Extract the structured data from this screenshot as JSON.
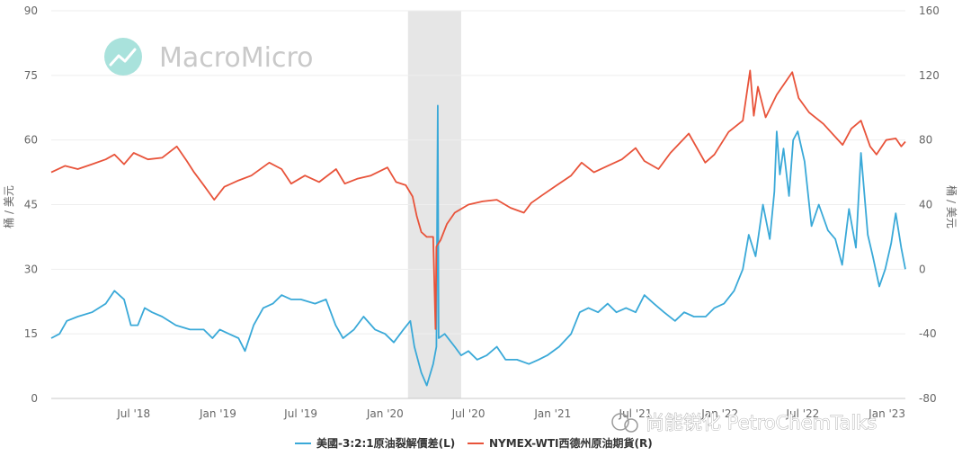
{
  "watermark": {
    "brand": "MacroMicro"
  },
  "credit": {
    "text": "尚能锐化 PetroChemTalks"
  },
  "chart_data": {
    "type": "line",
    "xlabel": "",
    "x_range": [
      "2018-01-02",
      "2023-02-10"
    ],
    "x_ticks": [
      {
        "label": "Jul '18",
        "date": "2018-07-01"
      },
      {
        "label": "Jan '19",
        "date": "2019-01-01"
      },
      {
        "label": "Jul '19",
        "date": "2019-07-01"
      },
      {
        "label": "Jan '20",
        "date": "2020-01-01"
      },
      {
        "label": "Jul '20",
        "date": "2020-07-01"
      },
      {
        "label": "Jan '21",
        "date": "2021-01-01"
      },
      {
        "label": "Jul '21",
        "date": "2021-07-01"
      },
      {
        "label": "Jan '22",
        "date": "2022-01-01"
      },
      {
        "label": "Jul '22",
        "date": "2022-07-01"
      },
      {
        "label": "Jan '23",
        "date": "2023-01-01"
      }
    ],
    "y_left": {
      "label": "桶 / 美元",
      "min": 0,
      "max": 90,
      "ticks": [
        0,
        15,
        30,
        45,
        60,
        75,
        90
      ]
    },
    "y_right": {
      "label": "桶 / 美元",
      "min": -80,
      "max": 160,
      "ticks": [
        -80,
        -40,
        0,
        40,
        80,
        120,
        160
      ]
    },
    "shaded_region": {
      "from": "2020-02-20",
      "to": "2020-06-15",
      "color": "#e6e6e6"
    },
    "grid": true,
    "legend_position": "bottom",
    "series": [
      {
        "name": "美國-3:2:1原油裂解價差(L)",
        "axis": "left",
        "color": "#3aa9d8",
        "points": [
          [
            "2018-01-02",
            14
          ],
          [
            "2018-01-20",
            15
          ],
          [
            "2018-02-05",
            18
          ],
          [
            "2018-03-01",
            19
          ],
          [
            "2018-04-01",
            20
          ],
          [
            "2018-05-01",
            22
          ],
          [
            "2018-05-20",
            25
          ],
          [
            "2018-06-10",
            23
          ],
          [
            "2018-06-25",
            17
          ],
          [
            "2018-07-10",
            17
          ],
          [
            "2018-07-25",
            21
          ],
          [
            "2018-08-10",
            20
          ],
          [
            "2018-09-01",
            19
          ],
          [
            "2018-10-01",
            17
          ],
          [
            "2018-11-01",
            16
          ],
          [
            "2018-12-01",
            16
          ],
          [
            "2018-12-20",
            14
          ],
          [
            "2019-01-05",
            16
          ],
          [
            "2019-01-25",
            15
          ],
          [
            "2019-02-15",
            14
          ],
          [
            "2019-03-01",
            11
          ],
          [
            "2019-03-20",
            17
          ],
          [
            "2019-04-10",
            21
          ],
          [
            "2019-05-01",
            22
          ],
          [
            "2019-05-20",
            24
          ],
          [
            "2019-06-10",
            23
          ],
          [
            "2019-07-01",
            23
          ],
          [
            "2019-08-01",
            22
          ],
          [
            "2019-08-25",
            23
          ],
          [
            "2019-09-15",
            17
          ],
          [
            "2019-10-01",
            14
          ],
          [
            "2019-10-25",
            16
          ],
          [
            "2019-11-15",
            19
          ],
          [
            "2019-12-10",
            16
          ],
          [
            "2020-01-01",
            15
          ],
          [
            "2020-01-20",
            13
          ],
          [
            "2020-02-10",
            16
          ],
          [
            "2020-02-25",
            18
          ],
          [
            "2020-03-05",
            12
          ],
          [
            "2020-03-20",
            6
          ],
          [
            "2020-04-01",
            3
          ],
          [
            "2020-04-15",
            8
          ],
          [
            "2020-04-22",
            12
          ],
          [
            "2020-04-25",
            68
          ],
          [
            "2020-04-27",
            14
          ],
          [
            "2020-05-10",
            15
          ],
          [
            "2020-06-01",
            12
          ],
          [
            "2020-06-15",
            10
          ],
          [
            "2020-07-01",
            11
          ],
          [
            "2020-07-20",
            9
          ],
          [
            "2020-08-10",
            10
          ],
          [
            "2020-09-01",
            12
          ],
          [
            "2020-09-20",
            9
          ],
          [
            "2020-10-15",
            9
          ],
          [
            "2020-11-10",
            8
          ],
          [
            "2020-12-01",
            9
          ],
          [
            "2020-12-20",
            10
          ],
          [
            "2021-01-15",
            12
          ],
          [
            "2021-02-10",
            15
          ],
          [
            "2021-03-01",
            20
          ],
          [
            "2021-03-20",
            21
          ],
          [
            "2021-04-10",
            20
          ],
          [
            "2021-05-01",
            22
          ],
          [
            "2021-05-20",
            20
          ],
          [
            "2021-06-10",
            21
          ],
          [
            "2021-07-01",
            20
          ],
          [
            "2021-07-20",
            24
          ],
          [
            "2021-08-10",
            22
          ],
          [
            "2021-09-01",
            20
          ],
          [
            "2021-09-25",
            18
          ],
          [
            "2021-10-15",
            20
          ],
          [
            "2021-11-05",
            19
          ],
          [
            "2021-12-01",
            19
          ],
          [
            "2021-12-20",
            21
          ],
          [
            "2022-01-10",
            22
          ],
          [
            "2022-02-01",
            25
          ],
          [
            "2022-02-20",
            30
          ],
          [
            "2022-03-05",
            38
          ],
          [
            "2022-03-20",
            33
          ],
          [
            "2022-04-05",
            45
          ],
          [
            "2022-04-20",
            37
          ],
          [
            "2022-04-30",
            48
          ],
          [
            "2022-05-05",
            62
          ],
          [
            "2022-05-12",
            52
          ],
          [
            "2022-05-20",
            58
          ],
          [
            "2022-06-01",
            47
          ],
          [
            "2022-06-10",
            60
          ],
          [
            "2022-06-20",
            62
          ],
          [
            "2022-07-05",
            55
          ],
          [
            "2022-07-20",
            40
          ],
          [
            "2022-08-05",
            45
          ],
          [
            "2022-08-25",
            39
          ],
          [
            "2022-09-10",
            37
          ],
          [
            "2022-09-25",
            31
          ],
          [
            "2022-10-10",
            44
          ],
          [
            "2022-10-25",
            35
          ],
          [
            "2022-11-05",
            57
          ],
          [
            "2022-11-20",
            38
          ],
          [
            "2022-12-01",
            33
          ],
          [
            "2022-12-15",
            26
          ],
          [
            "2022-12-28",
            30
          ],
          [
            "2023-01-10",
            36
          ],
          [
            "2023-01-20",
            43
          ],
          [
            "2023-02-01",
            35
          ],
          [
            "2023-02-10",
            30
          ]
        ]
      },
      {
        "name": "NYMEX-WTI西德州原油期貨(R)",
        "axis": "right",
        "color": "#e8533a",
        "points": [
          [
            "2018-01-02",
            60
          ],
          [
            "2018-02-01",
            64
          ],
          [
            "2018-03-01",
            62
          ],
          [
            "2018-04-01",
            65
          ],
          [
            "2018-05-01",
            68
          ],
          [
            "2018-05-20",
            71
          ],
          [
            "2018-06-10",
            65
          ],
          [
            "2018-07-01",
            72
          ],
          [
            "2018-08-01",
            68
          ],
          [
            "2018-09-01",
            69
          ],
          [
            "2018-10-03",
            76
          ],
          [
            "2018-10-25",
            67
          ],
          [
            "2018-11-10",
            60
          ],
          [
            "2018-12-01",
            52
          ],
          [
            "2018-12-24",
            43
          ],
          [
            "2019-01-15",
            51
          ],
          [
            "2019-02-15",
            55
          ],
          [
            "2019-03-15",
            58
          ],
          [
            "2019-04-23",
            66
          ],
          [
            "2019-05-20",
            62
          ],
          [
            "2019-06-10",
            53
          ],
          [
            "2019-07-10",
            58
          ],
          [
            "2019-08-10",
            54
          ],
          [
            "2019-09-16",
            62
          ],
          [
            "2019-10-05",
            53
          ],
          [
            "2019-11-01",
            56
          ],
          [
            "2019-12-01",
            58
          ],
          [
            "2020-01-06",
            63
          ],
          [
            "2020-01-25",
            54
          ],
          [
            "2020-02-15",
            52
          ],
          [
            "2020-03-01",
            45
          ],
          [
            "2020-03-10",
            33
          ],
          [
            "2020-03-20",
            23
          ],
          [
            "2020-04-01",
            20
          ],
          [
            "2020-04-15",
            20
          ],
          [
            "2020-04-20",
            -37
          ],
          [
            "2020-04-22",
            14
          ],
          [
            "2020-05-01",
            18
          ],
          [
            "2020-05-15",
            28
          ],
          [
            "2020-06-01",
            35
          ],
          [
            "2020-07-01",
            40
          ],
          [
            "2020-08-01",
            42
          ],
          [
            "2020-09-01",
            43
          ],
          [
            "2020-10-01",
            38
          ],
          [
            "2020-10-30",
            35
          ],
          [
            "2020-11-15",
            41
          ],
          [
            "2020-12-10",
            46
          ],
          [
            "2021-01-10",
            52
          ],
          [
            "2021-02-10",
            58
          ],
          [
            "2021-03-05",
            66
          ],
          [
            "2021-04-01",
            60
          ],
          [
            "2021-05-01",
            64
          ],
          [
            "2021-06-01",
            68
          ],
          [
            "2021-07-01",
            75
          ],
          [
            "2021-07-20",
            67
          ],
          [
            "2021-08-20",
            62
          ],
          [
            "2021-09-15",
            72
          ],
          [
            "2021-10-25",
            84
          ],
          [
            "2021-11-30",
            66
          ],
          [
            "2021-12-20",
            71
          ],
          [
            "2022-01-20",
            85
          ],
          [
            "2022-02-20",
            92
          ],
          [
            "2022-03-08",
            123
          ],
          [
            "2022-03-16",
            95
          ],
          [
            "2022-03-25",
            113
          ],
          [
            "2022-04-11",
            94
          ],
          [
            "2022-05-05",
            108
          ],
          [
            "2022-06-08",
            122
          ],
          [
            "2022-06-22",
            106
          ],
          [
            "2022-07-15",
            97
          ],
          [
            "2022-08-15",
            90
          ],
          [
            "2022-09-26",
            77
          ],
          [
            "2022-10-15",
            87
          ],
          [
            "2022-11-05",
            92
          ],
          [
            "2022-11-25",
            76
          ],
          [
            "2022-12-09",
            71
          ],
          [
            "2022-12-30",
            80
          ],
          [
            "2023-01-20",
            81
          ],
          [
            "2023-02-01",
            76
          ],
          [
            "2023-02-10",
            79
          ]
        ]
      }
    ]
  }
}
